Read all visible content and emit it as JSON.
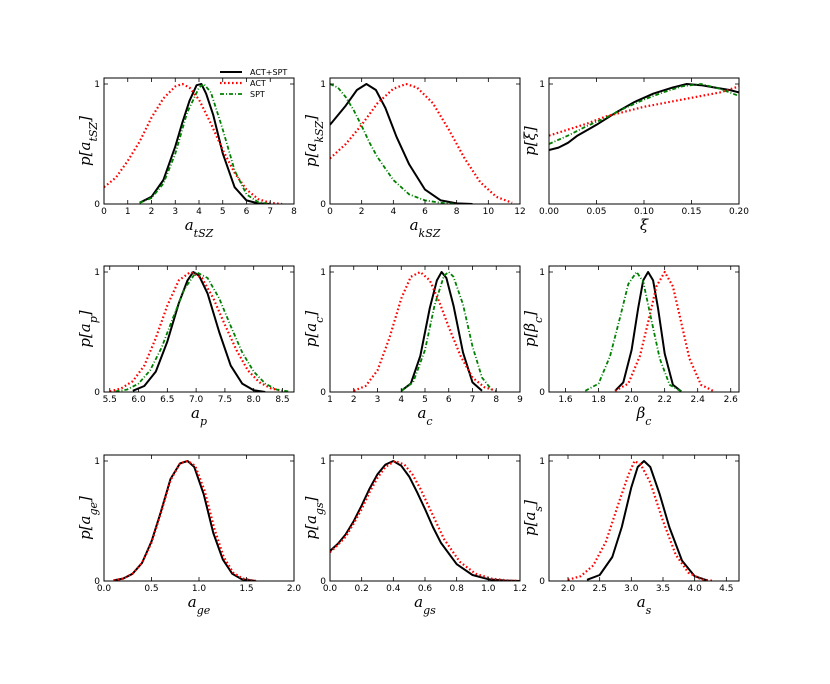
{
  "legend": [
    {
      "name": "ACT+SPT",
      "color": "#000000",
      "dash": "solid"
    },
    {
      "name": "ACT",
      "color": "#ff0000",
      "dash": "dotted"
    },
    {
      "name": "SPT",
      "color": "#008000",
      "dash": "dashdot"
    }
  ],
  "chart_data": [
    {
      "type": "line",
      "id": "a_tSZ",
      "xlabel": "a_tSZ",
      "ylabel": "p[a_tSZ]",
      "xlim": [
        0,
        8
      ],
      "ylim": [
        0,
        1.05
      ],
      "xticks": [
        0,
        1,
        2,
        3,
        4,
        5,
        6,
        7,
        8
      ],
      "xticklabels": [
        "0",
        "1",
        "2",
        "3",
        "4",
        "5",
        "6",
        "7",
        "8"
      ],
      "yticks": [
        0,
        1
      ],
      "yticklabels": [
        "0",
        "1"
      ],
      "legend": true,
      "series": [
        {
          "name": "ACT+SPT",
          "x": [
            1.5,
            2,
            2.5,
            3,
            3.3,
            3.6,
            3.9,
            4.1,
            4.3,
            4.6,
            5,
            5.5,
            6,
            6.5,
            7
          ],
          "y": [
            0.01,
            0.06,
            0.2,
            0.48,
            0.68,
            0.86,
            0.99,
            1.0,
            0.92,
            0.74,
            0.42,
            0.14,
            0.03,
            0.005,
            0
          ]
        },
        {
          "name": "ACT",
          "x": [
            0,
            0.5,
            1,
            1.5,
            2,
            2.5,
            3,
            3.3,
            3.6,
            4,
            4.5,
            5,
            5.5,
            6,
            6.5,
            7,
            7.5
          ],
          "y": [
            0.14,
            0.22,
            0.36,
            0.52,
            0.72,
            0.88,
            0.98,
            1.0,
            0.97,
            0.87,
            0.67,
            0.45,
            0.26,
            0.12,
            0.04,
            0.01,
            0
          ]
        },
        {
          "name": "SPT",
          "x": [
            1.5,
            2,
            2.5,
            3,
            3.5,
            4,
            4.2,
            4.5,
            5,
            5.5,
            6,
            6.5,
            7
          ],
          "y": [
            0.01,
            0.05,
            0.17,
            0.42,
            0.76,
            0.97,
            1.0,
            0.93,
            0.62,
            0.28,
            0.08,
            0.015,
            0
          ]
        }
      ]
    },
    {
      "type": "line",
      "id": "a_kSZ",
      "xlabel": "a_kSZ",
      "ylabel": "p[a_kSZ]",
      "xlim": [
        0,
        12
      ],
      "ylim": [
        0,
        1.05
      ],
      "xticks": [
        0,
        2,
        4,
        6,
        8,
        10,
        12
      ],
      "xticklabels": [
        "0",
        "2",
        "4",
        "6",
        "8",
        "10",
        "12"
      ],
      "yticks": [
        0,
        1
      ],
      "yticklabels": [
        "0",
        "1"
      ],
      "series": [
        {
          "name": "ACT+SPT",
          "x": [
            0,
            1,
            1.7,
            2.3,
            2.9,
            3.5,
            4.2,
            5,
            6,
            7,
            8,
            9
          ],
          "y": [
            0.66,
            0.82,
            0.95,
            1.0,
            0.95,
            0.8,
            0.56,
            0.33,
            0.12,
            0.03,
            0.005,
            0
          ]
        },
        {
          "name": "ACT",
          "x": [
            0,
            1,
            2,
            3,
            4,
            4.8,
            5.5,
            6.5,
            7.5,
            8.5,
            9.5,
            10.5,
            11.5
          ],
          "y": [
            0.38,
            0.5,
            0.66,
            0.84,
            0.96,
            1.0,
            0.97,
            0.84,
            0.62,
            0.38,
            0.18,
            0.06,
            0.01
          ]
        },
        {
          "name": "SPT",
          "x": [
            0,
            0.5,
            1,
            1.5,
            2,
            2.5,
            3,
            4,
            5,
            6,
            7,
            8
          ],
          "y": [
            1.0,
            0.97,
            0.89,
            0.78,
            0.65,
            0.51,
            0.39,
            0.2,
            0.08,
            0.03,
            0.01,
            0
          ]
        }
      ]
    },
    {
      "type": "line",
      "id": "xi",
      "xlabel": "ξ",
      "ylabel": "p[ξ]",
      "xlim": [
        0,
        0.2
      ],
      "ylim": [
        0,
        1.05
      ],
      "xticks": [
        0,
        0.05,
        0.1,
        0.15,
        0.2
      ],
      "xticklabels": [
        "0.00",
        "0.05",
        "0.10",
        "0.15",
        "0.20"
      ],
      "yticks": [
        1
      ],
      "yticklabels": [
        "1"
      ],
      "series": [
        {
          "name": "ACT+SPT",
          "x": [
            0,
            0.01,
            0.02,
            0.03,
            0.05,
            0.07,
            0.09,
            0.11,
            0.13,
            0.145,
            0.16,
            0.175,
            0.19,
            0.2
          ],
          "y": [
            0.45,
            0.47,
            0.51,
            0.57,
            0.66,
            0.76,
            0.85,
            0.92,
            0.97,
            1.0,
            0.99,
            0.97,
            0.95,
            0.93
          ]
        },
        {
          "name": "ACT",
          "x": [
            0,
            0.02,
            0.04,
            0.06,
            0.08,
            0.1,
            0.12,
            0.14,
            0.16,
            0.18,
            0.2
          ],
          "y": [
            0.57,
            0.62,
            0.67,
            0.73,
            0.77,
            0.81,
            0.84,
            0.87,
            0.9,
            0.93,
            0.98
          ]
        },
        {
          "name": "SPT",
          "x": [
            0,
            0.02,
            0.04,
            0.06,
            0.08,
            0.1,
            0.12,
            0.14,
            0.16,
            0.18,
            0.2
          ],
          "y": [
            0.5,
            0.57,
            0.65,
            0.72,
            0.8,
            0.87,
            0.93,
            0.98,
            1.0,
            0.96,
            0.9
          ]
        }
      ]
    },
    {
      "type": "line",
      "id": "a_p",
      "xlabel": "a_p",
      "ylabel": "p[a_p]",
      "xlim": [
        5.4,
        8.7
      ],
      "ylim": [
        0,
        1.05
      ],
      "xticks": [
        5.5,
        6,
        6.5,
        7,
        7.5,
        8,
        8.5
      ],
      "xticklabels": [
        "5.5",
        "6.0",
        "6.5",
        "7.0",
        "7.5",
        "8.0",
        "8.5"
      ],
      "yticks": [
        0,
        1
      ],
      "yticklabels": [
        "0",
        "1"
      ],
      "series": [
        {
          "name": "ACT+SPT",
          "x": [
            5.9,
            6.1,
            6.3,
            6.5,
            6.7,
            6.85,
            6.95,
            7.05,
            7.2,
            7.4,
            7.6,
            7.8,
            8,
            8.2
          ],
          "y": [
            0.01,
            0.05,
            0.17,
            0.42,
            0.74,
            0.93,
            1.0,
            0.97,
            0.82,
            0.5,
            0.22,
            0.07,
            0.015,
            0
          ]
        },
        {
          "name": "ACT",
          "x": [
            5.5,
            5.7,
            5.9,
            6.1,
            6.3,
            6.5,
            6.7,
            6.9,
            7.1,
            7.3,
            7.5,
            7.7,
            7.9,
            8.1,
            8.3,
            8.5
          ],
          "y": [
            0.005,
            0.03,
            0.09,
            0.22,
            0.45,
            0.72,
            0.93,
            1.0,
            0.95,
            0.78,
            0.56,
            0.35,
            0.18,
            0.08,
            0.03,
            0.01
          ]
        },
        {
          "name": "SPT",
          "x": [
            5.6,
            5.8,
            6,
            6.2,
            6.4,
            6.6,
            6.8,
            7,
            7.2,
            7.4,
            7.6,
            7.8,
            8,
            8.2,
            8.4,
            8.6
          ],
          "y": [
            0.005,
            0.02,
            0.07,
            0.18,
            0.37,
            0.62,
            0.86,
            1.0,
            0.95,
            0.78,
            0.55,
            0.33,
            0.17,
            0.07,
            0.02,
            0.005
          ]
        }
      ]
    },
    {
      "type": "line",
      "id": "a_c",
      "xlabel": "a_c",
      "ylabel": "p[a_c]",
      "xlim": [
        1,
        9
      ],
      "ylim": [
        0,
        1.05
      ],
      "xticks": [
        1,
        2,
        3,
        4,
        5,
        6,
        7,
        8,
        9
      ],
      "xticklabels": [
        "1",
        "2",
        "3",
        "4",
        "5",
        "6",
        "7",
        "8",
        "9"
      ],
      "yticks": [
        0,
        1
      ],
      "yticklabels": [
        "0",
        "1"
      ],
      "series": [
        {
          "name": "ACT+SPT",
          "x": [
            4,
            4.4,
            4.8,
            5.2,
            5.5,
            5.7,
            5.9,
            6.2,
            6.6,
            7,
            7.4
          ],
          "y": [
            0.01,
            0.07,
            0.3,
            0.7,
            0.93,
            1.0,
            0.95,
            0.72,
            0.33,
            0.08,
            0.01
          ]
        },
        {
          "name": "ACT",
          "x": [
            2,
            2.5,
            3,
            3.5,
            4,
            4.4,
            4.8,
            5.2,
            5.6,
            6,
            6.5,
            7,
            7.5,
            8
          ],
          "y": [
            0.01,
            0.05,
            0.18,
            0.45,
            0.78,
            0.96,
            1.0,
            0.93,
            0.75,
            0.54,
            0.3,
            0.12,
            0.04,
            0.01
          ]
        },
        {
          "name": "SPT",
          "x": [
            4,
            4.5,
            5,
            5.4,
            5.8,
            6,
            6.2,
            6.6,
            7,
            7.4,
            7.8
          ],
          "y": [
            0.01,
            0.08,
            0.35,
            0.72,
            0.97,
            1.0,
            0.96,
            0.73,
            0.38,
            0.12,
            0.02
          ]
        }
      ]
    },
    {
      "type": "line",
      "id": "beta_c",
      "xlabel": "β_c",
      "ylabel": "p[β_c]",
      "xlim": [
        1.5,
        2.65
      ],
      "ylim": [
        0,
        1.05
      ],
      "xticks": [
        1.6,
        1.8,
        2,
        2.2,
        2.4,
        2.6
      ],
      "xticklabels": [
        "1.6",
        "1.8",
        "2.0",
        "2.2",
        "2.4",
        "2.6"
      ],
      "yticks": [
        0,
        1
      ],
      "yticklabels": [
        "0",
        "1"
      ],
      "series": [
        {
          "name": "ACT+SPT",
          "x": [
            1.9,
            1.95,
            2,
            2.04,
            2.07,
            2.1,
            2.13,
            2.16,
            2.2,
            2.25,
            2.3
          ],
          "y": [
            0.01,
            0.08,
            0.35,
            0.7,
            0.93,
            1.0,
            0.93,
            0.7,
            0.32,
            0.06,
            0.005
          ]
        },
        {
          "name": "ACT",
          "x": [
            1.9,
            1.98,
            2.05,
            2.1,
            2.15,
            2.2,
            2.25,
            2.3,
            2.35,
            2.42,
            2.5
          ],
          "y": [
            0.01,
            0.07,
            0.3,
            0.58,
            0.88,
            1.0,
            0.88,
            0.58,
            0.28,
            0.06,
            0.005
          ]
        },
        {
          "name": "SPT",
          "x": [
            1.72,
            1.8,
            1.87,
            1.93,
            1.98,
            2.03,
            2.07,
            2.12,
            2.17,
            2.23,
            2.3
          ],
          "y": [
            0.01,
            0.07,
            0.3,
            0.62,
            0.9,
            1.0,
            0.92,
            0.6,
            0.28,
            0.06,
            0.005
          ]
        }
      ]
    },
    {
      "type": "line",
      "id": "a_ge",
      "xlabel": "a_ge",
      "ylabel": "p[a_ge]",
      "xlim": [
        0,
        2
      ],
      "ylim": [
        0,
        1.05
      ],
      "xticks": [
        0,
        0.5,
        1,
        1.5,
        2
      ],
      "xticklabels": [
        "0.0",
        "0.5",
        "1.0",
        "1.5",
        "2.0"
      ],
      "yticks": [
        0,
        1
      ],
      "yticklabels": [
        "0",
        "1"
      ],
      "series": [
        {
          "name": "ACT+SPT",
          "x": [
            0.1,
            0.2,
            0.3,
            0.4,
            0.5,
            0.6,
            0.7,
            0.8,
            0.88,
            0.95,
            1.05,
            1.15,
            1.25,
            1.35,
            1.45,
            1.6
          ],
          "y": [
            0.005,
            0.02,
            0.06,
            0.15,
            0.33,
            0.58,
            0.85,
            0.98,
            1.0,
            0.95,
            0.72,
            0.4,
            0.18,
            0.06,
            0.015,
            0
          ]
        },
        {
          "name": "ACT",
          "x": [
            0.1,
            0.2,
            0.3,
            0.4,
            0.5,
            0.6,
            0.7,
            0.8,
            0.88,
            0.96,
            1.06,
            1.16,
            1.26,
            1.36,
            1.46,
            1.6
          ],
          "y": [
            0.005,
            0.02,
            0.06,
            0.15,
            0.32,
            0.57,
            0.84,
            0.98,
            1.0,
            0.96,
            0.75,
            0.44,
            0.2,
            0.07,
            0.02,
            0
          ]
        }
      ]
    },
    {
      "type": "line",
      "id": "a_gs",
      "xlabel": "a_gs",
      "ylabel": "p[a_gs]",
      "xlim": [
        0,
        1.2
      ],
      "ylim": [
        0,
        1.05
      ],
      "xticks": [
        0,
        0.2,
        0.4,
        0.6,
        0.8,
        1,
        1.2
      ],
      "xticklabels": [
        "0.0",
        "0.2",
        "0.4",
        "0.6",
        "0.8",
        "1.0",
        "1.2"
      ],
      "yticks": [
        0,
        1
      ],
      "yticklabels": [
        "0",
        "1"
      ],
      "series": [
        {
          "name": "ACT+SPT",
          "x": [
            0,
            0.05,
            0.1,
            0.15,
            0.2,
            0.25,
            0.3,
            0.35,
            0.4,
            0.45,
            0.5,
            0.55,
            0.6,
            0.65,
            0.7,
            0.8,
            0.9,
            1.0,
            1.1,
            1.2
          ],
          "y": [
            0.25,
            0.31,
            0.39,
            0.5,
            0.63,
            0.77,
            0.89,
            0.97,
            1.0,
            0.96,
            0.87,
            0.74,
            0.6,
            0.45,
            0.32,
            0.14,
            0.05,
            0.015,
            0.004,
            0
          ]
        },
        {
          "name": "ACT",
          "x": [
            0,
            0.05,
            0.1,
            0.15,
            0.2,
            0.25,
            0.3,
            0.35,
            0.41,
            0.47,
            0.52,
            0.57,
            0.62,
            0.67,
            0.72,
            0.82,
            0.92,
            1.02,
            1.12,
            1.2
          ],
          "y": [
            0.24,
            0.3,
            0.37,
            0.48,
            0.6,
            0.74,
            0.86,
            0.95,
            1.0,
            0.97,
            0.89,
            0.77,
            0.63,
            0.49,
            0.35,
            0.16,
            0.06,
            0.02,
            0.005,
            0
          ]
        }
      ]
    },
    {
      "type": "line",
      "id": "a_s",
      "xlabel": "a_s",
      "ylabel": "p[a_s]",
      "xlim": [
        1.7,
        4.7
      ],
      "ylim": [
        0,
        1.05
      ],
      "xticks": [
        2,
        2.5,
        3,
        3.5,
        4,
        4.5
      ],
      "xticklabels": [
        "2.0",
        "2.5",
        "3.0",
        "3.5",
        "4.0",
        "4.5"
      ],
      "yticks": [
        0,
        1
      ],
      "yticklabels": [
        "0",
        "1"
      ],
      "series": [
        {
          "name": "ACT+SPT",
          "x": [
            2.3,
            2.5,
            2.7,
            2.85,
            3,
            3.1,
            3.2,
            3.3,
            3.45,
            3.6,
            3.8,
            4,
            4.2
          ],
          "y": [
            0.01,
            0.05,
            0.2,
            0.45,
            0.78,
            0.95,
            1.0,
            0.95,
            0.72,
            0.45,
            0.17,
            0.04,
            0.005
          ]
        },
        {
          "name": "ACT",
          "x": [
            2,
            2.2,
            2.4,
            2.6,
            2.8,
            2.95,
            3.05,
            3.15,
            3.3,
            3.5,
            3.7,
            3.9,
            4.1,
            4.3
          ],
          "y": [
            0.01,
            0.04,
            0.13,
            0.33,
            0.65,
            0.88,
            1.0,
            0.97,
            0.82,
            0.5,
            0.22,
            0.07,
            0.015,
            0
          ]
        }
      ]
    }
  ]
}
